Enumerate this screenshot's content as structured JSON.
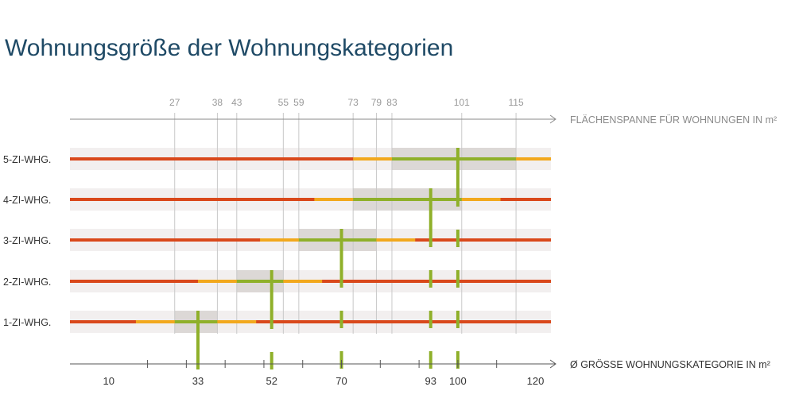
{
  "page": {
    "title": "Wohnungsgröße der Wohnungskategorien"
  },
  "colors": {
    "red": "#d9481b",
    "orange": "#f2a81d",
    "green": "#8fb02a",
    "band": "#f2efef",
    "box": "#dcd8d6",
    "axis": "#8a8a8a",
    "guide": "#c8c8c8"
  },
  "chart_data": {
    "type": "range",
    "top_axis_label": "FLÄCHENSPANNE FÜR WOHNUNGEN IN m²",
    "top_axis_ticks": [
      27,
      38,
      43,
      55,
      59,
      73,
      79,
      83,
      101,
      115
    ],
    "bottom_axis_label": "Ø GRÖSSE WOHNUNGSKATEGORIE IN m²",
    "bottom_axis_ticks": [
      10,
      33,
      52,
      70,
      93,
      100,
      120
    ],
    "bottom_axis_minor": [
      20,
      30,
      40,
      50,
      60,
      70,
      80,
      90,
      100,
      110
    ],
    "xlim": [
      0,
      124
    ],
    "categories": [
      {
        "label": "5-ZI-WHG.",
        "range": [
          83,
          115
        ],
        "orange": [
          73,
          124
        ],
        "mean": 100
      },
      {
        "label": "4-ZI-WHG.",
        "range": [
          73,
          101
        ],
        "orange": [
          63,
          111
        ],
        "mean": 93
      },
      {
        "label": "3-ZI-WHG.",
        "range": [
          59,
          79
        ],
        "orange": [
          49,
          89
        ],
        "mean": 70
      },
      {
        "label": "2-ZI-WHG.",
        "range": [
          43,
          55
        ],
        "orange": [
          33,
          65
        ],
        "mean": 52
      },
      {
        "label": "1-ZI-WHG.",
        "range": [
          27,
          38
        ],
        "orange": [
          17,
          48
        ],
        "mean": 33
      }
    ]
  }
}
